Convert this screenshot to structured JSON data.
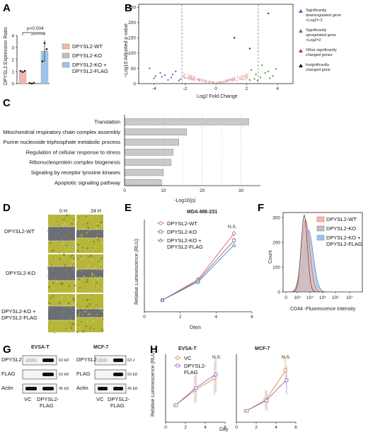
{
  "panels": [
    "A",
    "B",
    "C",
    "D",
    "E",
    "F",
    "G",
    "H"
  ],
  "panelA": {
    "ylabel": "DPYSL2 Expression Ratio",
    "pvalue": "p<0.004",
    "legend": [
      "DPYSL2-WT",
      "DPYSL2-KO",
      "DPYSL2-KO +",
      "DPYSL2-FLAG"
    ],
    "yticks": [
      "0",
      "1",
      "2",
      "3",
      "4"
    ]
  },
  "panelB": {
    "xlabel": "Log2 Fold Change",
    "ylabel": "−Log10 Adjusted p value",
    "yticks": [
      "0",
      "50",
      "100",
      "150",
      "200",
      "250"
    ],
    "xticks": [
      "-4",
      "-2",
      "0",
      "2",
      "4"
    ],
    "legend": [
      {
        "lines": [
          "Significantly",
          "downregulated gene",
          "<Log2=-2"
        ],
        "color": "#5b5ba8"
      },
      {
        "lines": [
          "Significantly",
          "upregulated gene",
          "<Log2=2"
        ],
        "color": "#3a9a3a"
      },
      {
        "lines": [
          "Other significantly",
          "changed genes"
        ],
        "color": "#d62c2c"
      },
      {
        "lines": [
          "Insignificantly",
          "changed gene"
        ],
        "color": "#111111"
      }
    ]
  },
  "panelC": {
    "xlabel": "-Log10(p)",
    "xticks": [
      "0",
      "10",
      "20",
      "30"
    ]
  },
  "panelD": {
    "cols": [
      "0 H",
      "24 H"
    ],
    "rows": [
      "DPYSL2-WT",
      "DPYSL2-KO",
      "DPYSL2-KO +",
      "DPYSL2-FLAG"
    ]
  },
  "panelE": {
    "title": "MDA-MB-231",
    "xlabel": "Days",
    "ylabel": "Relative Luminescence (RLU)",
    "ns": "N.S.",
    "xticks": [
      "0",
      "2",
      "4",
      "6"
    ],
    "legend": [
      "DPYSL2-WT",
      "DPYSL2-KO",
      "DPYSL2-KO +",
      "DPYSL2-FLAG"
    ]
  },
  "panelF": {
    "xlabel": "CD44 -Fluorescence Intensity",
    "ylabel": "Count",
    "yticks": [
      "0",
      "100",
      "200",
      "300"
    ],
    "xticks": [
      "0",
      "10³",
      "10⁴",
      "10⁵",
      "10⁶",
      "10⁷"
    ],
    "legend": [
      "DPYSL2-WT",
      "DPYSL2-KO",
      "DPYSL2-KO +",
      "DPYSL2-FLAG"
    ]
  },
  "panelG": {
    "blot1": {
      "title": "EVSA-T",
      "rows": [
        "DPYSL2",
        "FLAG",
        "Actin"
      ],
      "sizes": [
        "63 kD",
        "63 kD",
        "45 kD"
      ],
      "lanes": [
        "VC",
        "DPYSL2-",
        "FLAG"
      ]
    },
    "blot2": {
      "title": "MCF-7",
      "rows": [
        "DPYSL2",
        "FLAG",
        "Actin"
      ],
      "sizes": [
        "63 z",
        "63 kD",
        "45 kD"
      ],
      "lanes": [
        "VC",
        "DPYSL2-",
        "FLAG"
      ]
    }
  },
  "panelH": {
    "ylabel": "Relative Luminescence (RLU)",
    "xlabel": "Day",
    "titles": [
      "EVSA-T",
      "MCF-7"
    ],
    "ns": "N.S.",
    "legend": [
      "VC",
      "DPYSL2-",
      "FLAG"
    ],
    "xticks": [
      "0",
      "2",
      "4",
      "6"
    ],
    "colors": {
      "vc": "#e08a2c",
      "flag": "#8a6fc4"
    }
  },
  "chart_data": [
    {
      "panel": "A",
      "type": "bar",
      "categories": [
        "DPYSL2-WT",
        "DPYSL2-KO",
        "DPYSL2-KO + DPYSL2-FLAG"
      ],
      "values": [
        1.0,
        0.0,
        2.7
      ],
      "ylim": [
        0,
        4
      ],
      "colors": [
        "#f4b7b0",
        "#bfbfbf",
        "#9fc3ea"
      ]
    },
    {
      "panel": "B",
      "type": "scatter",
      "xlim": [
        -5,
        5
      ],
      "ylim": [
        0,
        260
      ],
      "series": [
        {
          "name": "Significantly downregulated gene",
          "color": "#5b5ba8",
          "x": [
            -4.3,
            -3.6,
            -3.9,
            -3.3,
            -2.9,
            -2.6,
            -2.3,
            -3.1,
            -4.0,
            -2.8,
            -3.5,
            -2.4
          ],
          "y": [
            50,
            35,
            25,
            28,
            20,
            40,
            15,
            12,
            18,
            30,
            22,
            10
          ]
        },
        {
          "name": "Significantly upregulated gene",
          "color": "#3a9a3a",
          "x": [
            2.3,
            2.6,
            3.0,
            3.4,
            3.7,
            2.9,
            2.5,
            3.2,
            3.9,
            2.7,
            3.5,
            2.2
          ],
          "y": [
            45,
            30,
            60,
            40,
            25,
            20,
            15,
            35,
            48,
            10,
            18,
            12
          ]
        },
        {
          "name": "Insignificantly changed gene",
          "color": "#111111",
          "x": [
            1.2,
            3.4,
            2.2
          ],
          "y": [
            150,
            230,
            115
          ]
        }
      ]
    },
    {
      "panel": "C",
      "type": "bar",
      "categories": [
        "Translation",
        "Mitochondrial respiratory chain complex assembly",
        "Purine nucleoside triphosphate metabolic process",
        "Regulation of cellular response to stress",
        "Ribonucleoprotein complex biogenesis",
        "Signaling by receptor tyrosine kinases",
        "Apoptotic signaling pathway"
      ],
      "values": [
        32,
        16,
        14,
        12.5,
        12,
        10,
        9.5
      ],
      "xlim": [
        0,
        35
      ]
    },
    {
      "panel": "E",
      "type": "line",
      "x": [
        1,
        3,
        5
      ],
      "xlim": [
        0,
        6
      ],
      "series": [
        {
          "name": "DPYSL2-WT",
          "color": "#e05a5a",
          "values": [
            1.0,
            2.8,
            6.8
          ]
        },
        {
          "name": "DPYSL2-KO",
          "color": "#777777",
          "values": [
            1.0,
            2.7,
            6.2
          ]
        },
        {
          "name": "DPYSL2-KO + DPYSL2-FLAG",
          "color": "#5b86c8",
          "values": [
            1.0,
            2.6,
            5.8
          ]
        }
      ]
    },
    {
      "panel": "F",
      "type": "area",
      "ylim": [
        0,
        320
      ],
      "series": [
        {
          "name": "DPYSL2-WT",
          "color": "#f4b7b0",
          "peak": 290
        },
        {
          "name": "DPYSL2-KO",
          "color": "#bfbfbf",
          "peak": 310
        },
        {
          "name": "DPYSL2-KO + DPYSL2-FLAG",
          "color": "#9fc3ea",
          "peak": 250
        }
      ]
    },
    {
      "panel": "H-EVSA-T",
      "type": "line",
      "x": [
        1,
        3,
        5
      ],
      "xlim": [
        0,
        6
      ],
      "series": [
        {
          "name": "VC",
          "color": "#e08a2c",
          "values": [
            1.0,
            1.9,
            2.6
          ]
        },
        {
          "name": "DPYSL2-FLAG",
          "color": "#8a6fc4",
          "values": [
            1.0,
            2.0,
            2.8
          ]
        }
      ]
    },
    {
      "panel": "H-MCF-7",
      "type": "line",
      "x": [
        1,
        3,
        5
      ],
      "xlim": [
        0,
        6
      ],
      "series": [
        {
          "name": "VC",
          "color": "#e08a2c",
          "values": [
            1.0,
            2.0,
            4.6
          ]
        },
        {
          "name": "DPYSL2-FLAG",
          "color": "#8a6fc4",
          "values": [
            1.0,
            1.9,
            3.7
          ]
        }
      ]
    }
  ]
}
